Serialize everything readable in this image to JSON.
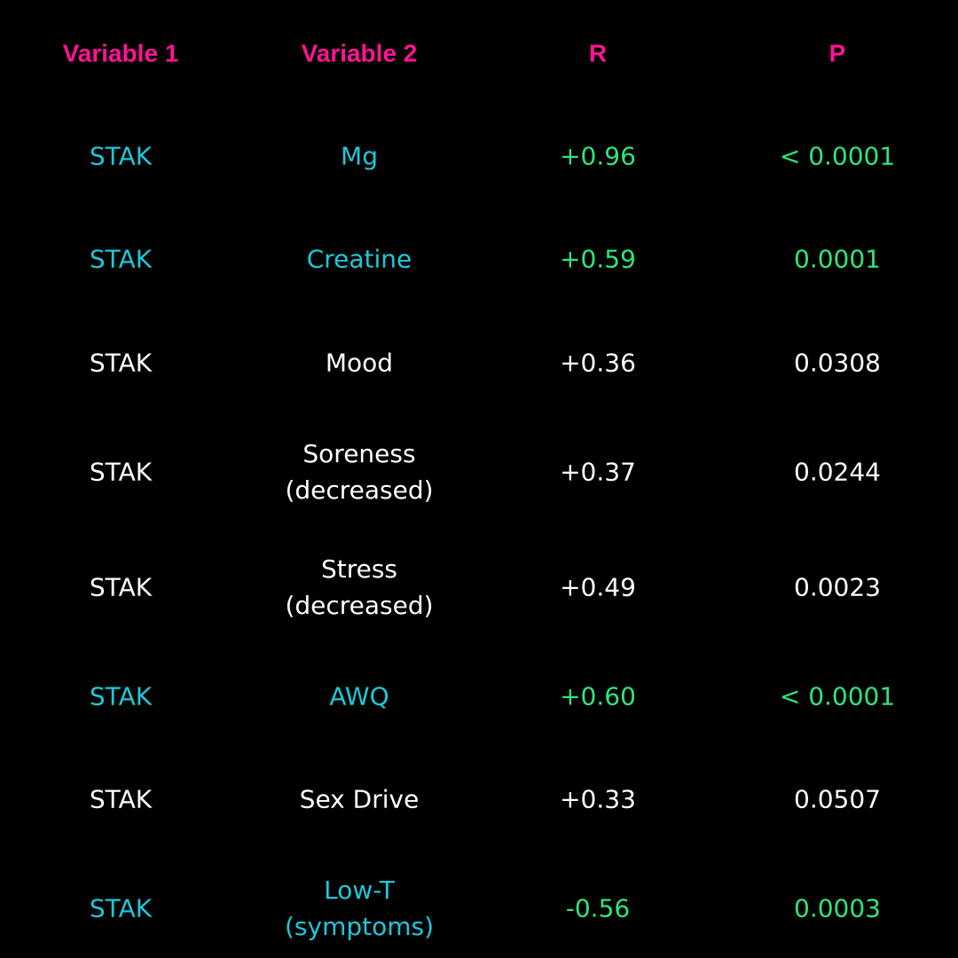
{
  "colors": {
    "background": "#000000",
    "header": "#ff1493",
    "highlight_variable": "#1ec8d8",
    "highlight_value": "#2ee57a",
    "normal": "#ffffff"
  },
  "table": {
    "headers": [
      "Variable 1",
      "Variable 2",
      "R",
      "P"
    ],
    "rows": [
      {
        "v1": "STAK",
        "v2": "Mg",
        "r": "+0.96",
        "p": "< 0.0001",
        "highlight": true
      },
      {
        "v1": "STAK",
        "v2": "Creatine",
        "r": "+0.59",
        "p": "0.0001",
        "highlight": true
      },
      {
        "v1": "STAK",
        "v2": "Mood",
        "r": "+0.36",
        "p": "0.0308",
        "highlight": false
      },
      {
        "v1": "STAK",
        "v2": "Soreness\n(decreased)",
        "r": "+0.37",
        "p": "0.0244",
        "highlight": false
      },
      {
        "v1": "STAK",
        "v2": "Stress\n(decreased)",
        "r": "+0.49",
        "p": "0.0023",
        "highlight": false
      },
      {
        "v1": "STAK",
        "v2": "AWQ",
        "r": "+0.60",
        "p": "< 0.0001",
        "highlight": true
      },
      {
        "v1": "STAK",
        "v2": "Sex Drive",
        "r": "+0.33",
        "p": "0.0507",
        "highlight": false
      },
      {
        "v1": "STAK",
        "v2": "Low-T\n(symptoms)",
        "r": "-0.56",
        "p": "0.0003",
        "highlight": true
      }
    ]
  }
}
